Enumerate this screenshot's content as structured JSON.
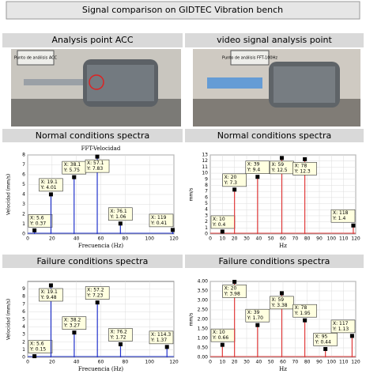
{
  "title": "Signal comparison on GIDTEC Vibration bench",
  "photos": [
    {
      "heading": "Analysis point ACC",
      "caption": "Punto de análisis ACC"
    },
    {
      "heading": "video signal analysis point",
      "caption": "Punto de análisis FFT-100Hz"
    }
  ],
  "sections": [
    "Normal conditions spectra",
    "Normal conditions spectra",
    "Failure conditions spectra",
    "Failure conditions spectra"
  ],
  "chart_data": [
    {
      "type": "stem",
      "title": "FFT-Velocidad",
      "xlabel": "Frecuencia (Hz)",
      "ylabel": "Velocidad (mm/s)",
      "color": "#2233cc",
      "xlim": [
        0,
        120
      ],
      "xticks": [
        0,
        20,
        40,
        60,
        80,
        100,
        120
      ],
      "ylim": [
        0,
        8
      ],
      "yticks": [
        0,
        1,
        2,
        3,
        4,
        5,
        6,
        7,
        8
      ],
      "grid": true,
      "x": [
        5.6,
        19.1,
        38.1,
        57.1,
        76.1,
        119
      ],
      "values": [
        0.37,
        4.01,
        5.75,
        7.83,
        1.06,
        0.41
      ],
      "x_labels": [
        "X: 5.6",
        "X: 19.1",
        "X: 38.1",
        "X: 57.1",
        "X: 76.1",
        "X: 119"
      ],
      "value_labels": [
        "Y: 0.37",
        "Y: 4.01",
        "Y: 5.75",
        "Y: 7.83",
        "Y: 1.06",
        "Y: 0.41"
      ]
    },
    {
      "type": "stem",
      "xlabel": "Hz",
      "ylabel": "mm/s",
      "color": "#e03a3a",
      "xlim": [
        0,
        120
      ],
      "xticks": [
        0,
        10,
        20,
        30,
        40,
        50,
        60,
        70,
        80,
        90,
        100,
        110,
        120
      ],
      "ylim": [
        0,
        13
      ],
      "yticks": [
        0,
        1,
        2,
        3,
        4,
        5,
        6,
        7,
        8,
        9,
        10,
        11,
        12,
        13
      ],
      "grid": true,
      "x": [
        10,
        20,
        39,
        59,
        78,
        118
      ],
      "values": [
        0.4,
        7.3,
        9.4,
        12.5,
        12.3,
        1.4
      ],
      "x_labels": [
        "X: 10",
        "X: 20",
        "X: 39",
        "X: 59",
        "X: 78",
        "X: 118"
      ],
      "value_labels": [
        "Y: 0.4",
        "Y: 7.3",
        "Y: 9.4",
        "Y: 12.5",
        "Y: 12.3",
        "Y: 1.4"
      ]
    },
    {
      "type": "stem",
      "xlabel": "Frecuencia (Hz)",
      "ylabel": "Velocidad (mm/s)",
      "color": "#2233cc",
      "xlim": [
        0,
        120
      ],
      "xticks": [
        0,
        20,
        40,
        60,
        80,
        100,
        120
      ],
      "ylim": [
        0,
        10
      ],
      "yticks": [
        0,
        1,
        2,
        3,
        4,
        5,
        6,
        7,
        8,
        9
      ],
      "grid": true,
      "x": [
        5.6,
        19.1,
        38.2,
        57.2,
        76.2,
        114.3
      ],
      "values": [
        0.15,
        9.48,
        3.27,
        7.23,
        1.72,
        1.37
      ],
      "x_labels": [
        "X: 5.6",
        "X: 19.1",
        "X: 38.2",
        "X: 57.2",
        "X: 76.2",
        "X: 114.3"
      ],
      "value_labels": [
        "Y: 0.15",
        "Y: 9.48",
        "Y: 3.27",
        "Y: 7.23",
        "Y: 1.72",
        "Y: 1.37"
      ]
    },
    {
      "type": "stem",
      "xlabel": "Hz",
      "ylabel": "mm/s",
      "color": "#e03a3a",
      "xlim": [
        0,
        120
      ],
      "xticks": [
        0,
        10,
        20,
        30,
        40,
        50,
        60,
        70,
        80,
        90,
        100,
        110,
        120
      ],
      "ylim": [
        0,
        4
      ],
      "yticks": [
        {
          "value": 0,
          "label": "0.00"
        },
        {
          "value": 0.5,
          "label": "0.50"
        },
        {
          "value": 1,
          "label": "1.00"
        },
        {
          "value": 1.5,
          "label": "1.50"
        },
        {
          "value": 2,
          "label": "2.00"
        },
        {
          "value": 2.5,
          "label": "2.50"
        },
        {
          "value": 3,
          "label": "3.00"
        },
        {
          "value": 3.5,
          "label": "3.50"
        },
        {
          "value": 4,
          "label": "4.00"
        }
      ],
      "grid": true,
      "x": [
        10,
        20,
        39,
        59,
        78,
        95,
        117
      ],
      "values": [
        0.66,
        3.98,
        1.7,
        3.38,
        1.95,
        0.44,
        1.13
      ],
      "x_labels": [
        "X: 10",
        "X: 20",
        "X: 39",
        "X: 59",
        "X: 78",
        "X: 95",
        "X: 117"
      ],
      "value_labels": [
        "Y: 0.66",
        "Y: 3.98",
        "Y: 1.70",
        "Y: 3.38",
        "Y: 1.95",
        "Y: 0.44",
        "Y: 1.13"
      ]
    }
  ]
}
